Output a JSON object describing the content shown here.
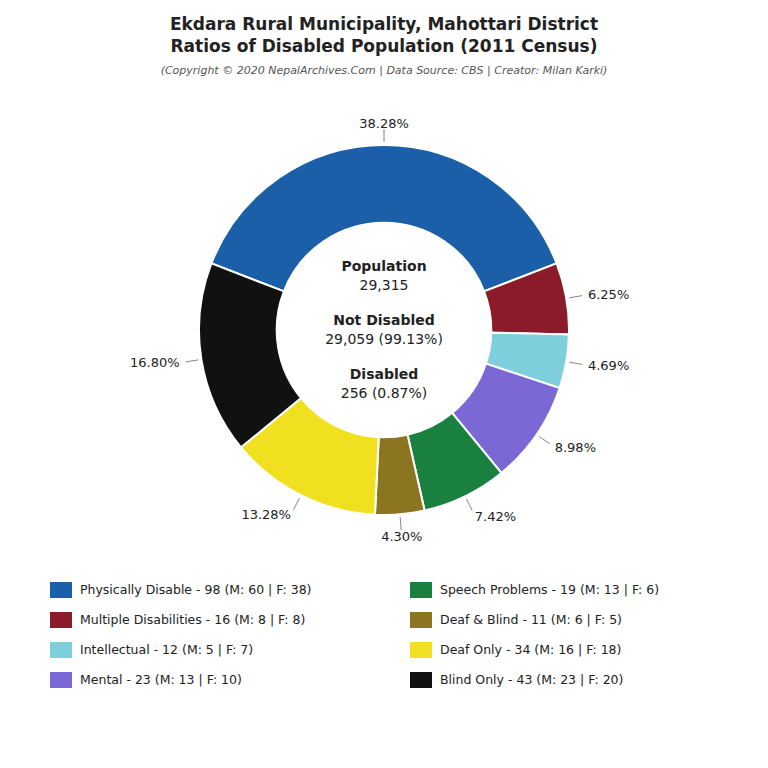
{
  "chart_data": {
    "type": "donut",
    "title": [
      "Ekdara Rural Municipality, Mahottari District",
      "Ratios of Disabled Population (2011 Census)"
    ],
    "subtitle": "(Copyright © 2020 NepalArchives.Com | Data Source: CBS | Creator: Milan Karki)",
    "categories": [
      "Physically Disable - 98 (M: 60 | F: 38)",
      "Multiple Disabilities - 16 (M: 8 | F: 8)",
      "Intellectual - 12 (M: 5 | F: 7)",
      "Mental - 23 (M: 13 | F: 10)",
      "Speech Problems - 19 (M: 13 | F: 6)",
      "Deaf & Blind - 11 (M: 6 | F: 5)",
      "Deaf Only - 34 (M: 16 | F: 18)",
      "Blind Only - 43 (M: 23 | F: 20)"
    ],
    "values": [
      38.28,
      6.25,
      4.69,
      8.98,
      7.42,
      4.3,
      13.28,
      16.8
    ],
    "value_labels": [
      "38.28%",
      "6.25%",
      "4.69%",
      "8.98%",
      "7.42%",
      "4.30%",
      "13.28%",
      "16.80%"
    ],
    "colors": [
      "#1a5fa8",
      "#8b1a2a",
      "#7ecfdc",
      "#7b68d4",
      "#1a8040",
      "#8b7520",
      "#f0e020",
      "#111111"
    ],
    "data_labels": true,
    "annotations": [
      "Population",
      "29,315",
      "Not Disabled",
      "29,059 (99.13%)",
      "Disabled",
      "256 (0.87%)"
    ]
  }
}
